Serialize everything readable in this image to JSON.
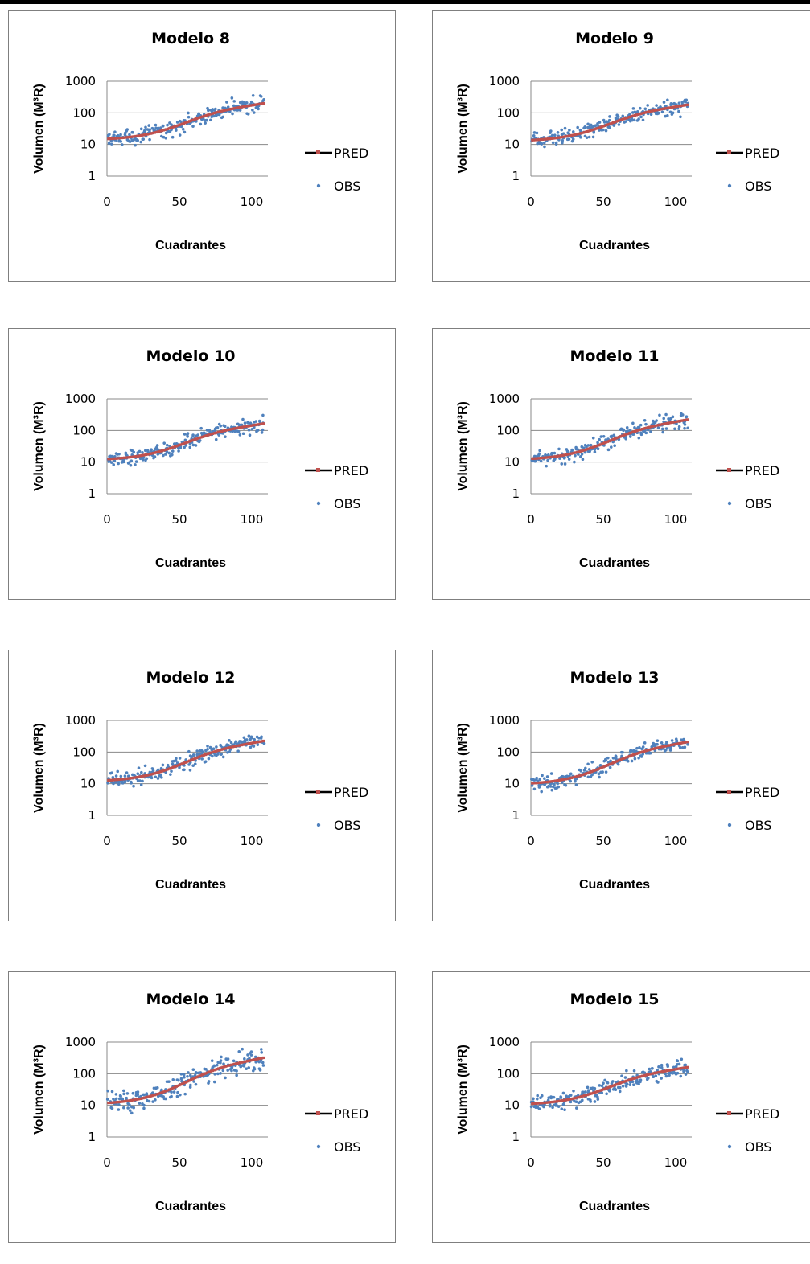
{
  "colors": {
    "pred_line": "#c0504d",
    "pred_marker": "#c0504d",
    "obs": "#4f81bd",
    "legend_line": "#000000",
    "grid": "#888888",
    "axis": "#888888"
  },
  "chart_data": [
    {
      "type": "scatter",
      "title": "Modelo 8",
      "xlabel": "Cuadrantes",
      "ylabel": "Volumen (M³R)",
      "xlim": [
        0,
        110
      ],
      "ylim": [
        1,
        1000
      ],
      "y_scale": "log",
      "x_ticks": [
        "0",
        "50",
        "100"
      ],
      "y_ticks": [
        "1",
        "10",
        "100",
        "1000"
      ],
      "grid": "horizontal",
      "legend": {
        "placement": "right",
        "entries": [
          "PRED",
          "OBS"
        ]
      },
      "pred_start": 12,
      "pred_end": 200,
      "obs_spread": 0.45,
      "seed": 8
    },
    {
      "type": "scatter",
      "title": "Modelo 9",
      "xlabel": "Cuadrantes",
      "ylabel": "Volumen (M³R)",
      "xlim": [
        0,
        110
      ],
      "ylim": [
        1,
        1000
      ],
      "y_scale": "log",
      "x_ticks": [
        "0",
        "50",
        "100"
      ],
      "y_ticks": [
        "1",
        "10",
        "100",
        "1000"
      ],
      "grid": "horizontal",
      "legend": {
        "placement": "right",
        "entries": [
          "PRED",
          "OBS"
        ]
      },
      "pred_start": 11,
      "pred_end": 180,
      "obs_spread": 0.45,
      "seed": 9
    },
    {
      "type": "scatter",
      "title": "Modelo 10",
      "xlabel": "Cuadrantes",
      "ylabel": "Volumen (M³R)",
      "xlim": [
        0,
        110
      ],
      "ylim": [
        1,
        1000
      ],
      "y_scale": "log",
      "x_ticks": [
        "0",
        "50",
        "100"
      ],
      "y_ticks": [
        "1",
        "10",
        "100",
        "1000"
      ],
      "grid": "horizontal",
      "legend": {
        "placement": "right",
        "entries": [
          "PRED",
          "OBS"
        ]
      },
      "pred_start": 10,
      "pred_end": 165,
      "obs_spread": 0.45,
      "seed": 10
    },
    {
      "type": "scatter",
      "title": "Modelo 11",
      "xlabel": "Cuadrantes",
      "ylabel": "Volumen (M³R)",
      "xlim": [
        0,
        110
      ],
      "ylim": [
        1,
        1000
      ],
      "y_scale": "log",
      "x_ticks": [
        "0",
        "50",
        "100"
      ],
      "y_ticks": [
        "1",
        "10",
        "100",
        "1000"
      ],
      "grid": "horizontal",
      "legend": {
        "placement": "right",
        "entries": [
          "PRED",
          "OBS"
        ]
      },
      "pred_start": 10,
      "pred_end": 220,
      "obs_spread": 0.45,
      "seed": 11
    },
    {
      "type": "scatter",
      "title": "Modelo 12",
      "xlabel": "Cuadrantes",
      "ylabel": "Volumen (M³R)",
      "xlim": [
        0,
        110
      ],
      "ylim": [
        1,
        1000
      ],
      "y_scale": "log",
      "x_ticks": [
        "0",
        "50",
        "100"
      ],
      "y_ticks": [
        "1",
        "10",
        "100",
        "1000"
      ],
      "grid": "horizontal",
      "legend": {
        "placement": "right",
        "entries": [
          "PRED",
          "OBS"
        ]
      },
      "pred_start": 10,
      "pred_end": 225,
      "obs_spread": 0.45,
      "seed": 12
    },
    {
      "type": "scatter",
      "title": "Modelo 13",
      "xlabel": "Cuadrantes",
      "ylabel": "Volumen (M³R)",
      "xlim": [
        0,
        110
      ],
      "ylim": [
        1,
        1000
      ],
      "y_scale": "log",
      "x_ticks": [
        "0",
        "50",
        "100"
      ],
      "y_ticks": [
        "1",
        "10",
        "100",
        "1000"
      ],
      "grid": "horizontal",
      "legend": {
        "placement": "right",
        "entries": [
          "PRED",
          "OBS"
        ]
      },
      "pred_start": 8,
      "pred_end": 210,
      "obs_spread": 0.45,
      "seed": 13
    },
    {
      "type": "scatter",
      "title": "Modelo 14",
      "xlabel": "Cuadrantes",
      "ylabel": "Volumen (M³R)",
      "xlim": [
        0,
        110
      ],
      "ylim": [
        1,
        1000
      ],
      "y_scale": "log",
      "x_ticks": [
        "0",
        "50",
        "100"
      ],
      "y_ticks": [
        "1",
        "10",
        "100",
        "1000"
      ],
      "grid": "horizontal",
      "legend": {
        "placement": "right",
        "entries": [
          "PRED",
          "OBS"
        ]
      },
      "pred_start": 9,
      "pred_end": 320,
      "obs_spread": 0.6,
      "seed": 14
    },
    {
      "type": "scatter",
      "title": "Modelo 15",
      "xlabel": "Cuadrantes",
      "ylabel": "Volumen (M³R)",
      "xlim": [
        0,
        110
      ],
      "ylim": [
        1,
        1000
      ],
      "y_scale": "log",
      "x_ticks": [
        "0",
        "50",
        "100"
      ],
      "y_ticks": [
        "1",
        "10",
        "100",
        "1000"
      ],
      "grid": "horizontal",
      "legend": {
        "placement": "right",
        "entries": [
          "PRED",
          "OBS"
        ]
      },
      "pred_start": 9,
      "pred_end": 160,
      "obs_spread": 0.45,
      "seed": 15
    }
  ]
}
